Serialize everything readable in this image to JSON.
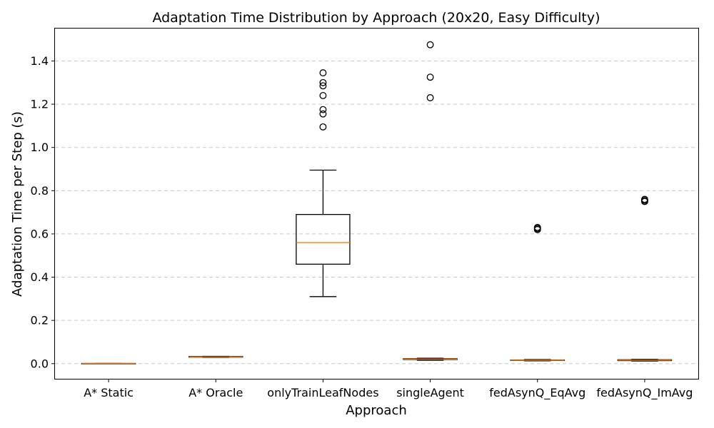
{
  "chart_data": {
    "type": "box",
    "title": "Adaptation Time Distribution by Approach (20x20, Easy Difficulty)",
    "xlabel": "Approach",
    "ylabel": "Adaptation Time per Step (s)",
    "ylim": [
      -0.07,
      1.55
    ],
    "yticks": [
      0.0,
      0.2,
      0.4,
      0.6,
      0.8,
      1.0,
      1.2,
      1.4
    ],
    "ytick_labels": [
      "0.0",
      "0.2",
      "0.4",
      "0.6",
      "0.8",
      "1.0",
      "1.2",
      "1.4"
    ],
    "grid": "y-dashed",
    "categories": [
      "A* Static",
      "A* Oracle",
      "onlyTrainLeafNodes",
      "singleAgent",
      "fedAsynQ_EqAvg",
      "fedAsynQ_ImAvg"
    ],
    "boxes": [
      {
        "whislo": 0.0,
        "q1": 0.0,
        "med": 0.0,
        "q3": 0.001,
        "whishi": 0.001,
        "fliers": []
      },
      {
        "whislo": 0.029,
        "q1": 0.03,
        "med": 0.031,
        "q3": 0.033,
        "whishi": 0.034,
        "fliers": []
      },
      {
        "whislo": 0.31,
        "q1": 0.46,
        "med": 0.56,
        "q3": 0.69,
        "whishi": 0.895,
        "fliers": [
          1.095,
          1.155,
          1.175,
          1.24,
          1.285,
          1.3,
          1.345
        ]
      },
      {
        "whislo": 0.016,
        "q1": 0.019,
        "med": 0.021,
        "q3": 0.023,
        "whishi": 0.025,
        "fliers": [
          1.23,
          1.325,
          1.475
        ]
      },
      {
        "whislo": 0.013,
        "q1": 0.015,
        "med": 0.016,
        "q3": 0.017,
        "whishi": 0.019,
        "fliers": [
          0.62,
          0.625,
          0.63
        ]
      },
      {
        "whislo": 0.012,
        "q1": 0.014,
        "med": 0.016,
        "q3": 0.018,
        "whishi": 0.02,
        "fliers": [
          0.75,
          0.755,
          0.76
        ]
      }
    ],
    "colors": {
      "box": "#000000",
      "median": "#ff7f0e",
      "grid": "#c8c8c8"
    }
  }
}
